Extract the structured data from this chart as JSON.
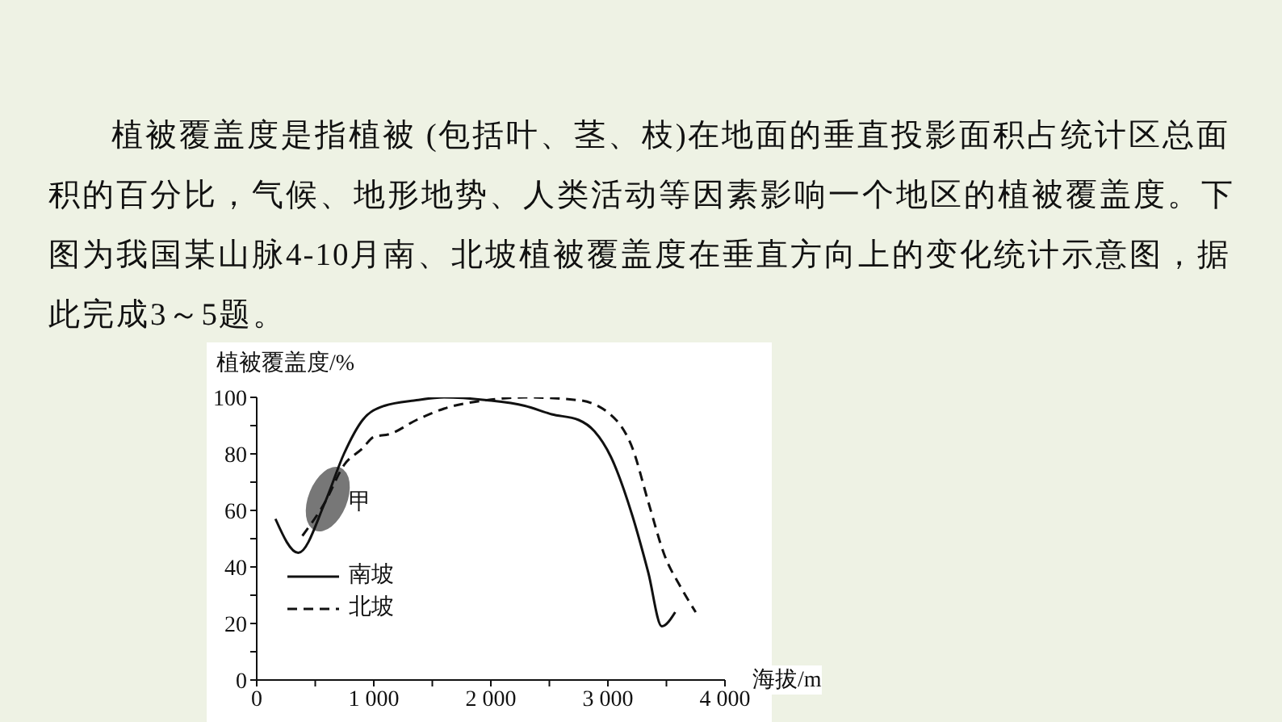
{
  "chart_data": {
    "type": "line",
    "title": "植被覆盖度是指植被 (包括叶、茎、枝)在地面的垂直投影面积占统计区总面积的百分比，气候、地形地势、人类活动等因素影响一个地区的植被覆盖度。下图为我国某山脉4-10月南、北坡植被覆盖度在垂直方向上的变化统计示意图，据此完成3～5题。",
    "xlabel": "海拔/m",
    "ylabel": "植被覆盖度/%",
    "xlim": [
      0,
      4000
    ],
    "ylim": [
      0,
      100
    ],
    "xticks": [
      0,
      {
        "value": 500,
        "label": null
      },
      {
        "value": 1000,
        "label": "1 000"
      },
      {
        "value": 1500,
        "label": null
      },
      {
        "value": 2000,
        "label": "2 000"
      },
      {
        "value": 2500,
        "label": null
      },
      {
        "value": 3000,
        "label": "3 000"
      },
      {
        "value": 3500,
        "label": null
      },
      {
        "value": 4000,
        "label": "4 000"
      }
    ],
    "yticks": [
      0,
      {
        "value": 10,
        "label": null
      },
      20,
      {
        "value": 30,
        "label": null
      },
      40,
      {
        "value": 50,
        "label": null
      },
      60,
      {
        "value": 70,
        "label": null
      },
      80,
      {
        "value": 90,
        "label": null
      },
      100
    ],
    "grid": false,
    "legend": "bottom left",
    "marker": "none",
    "annotations": [
      "甲"
    ],
    "series": [
      {
        "name": "南坡",
        "color": "#111111",
        "line_style": "solid",
        "x": [
          160,
          355,
          585,
          745,
          905,
          1090,
          1365,
          1600,
          1965,
          2290,
          2520,
          2750,
          2885,
          3025,
          3210,
          3345,
          3460,
          3575
        ],
        "values": [
          57,
          45,
          63,
          80,
          92,
          97,
          99,
          100,
          99,
          97,
          94,
          92,
          88,
          79,
          58,
          38,
          19,
          24
        ]
      },
      {
        "name": "北坡",
        "color": "#111111",
        "line_style": "dashed",
        "x": [
          390,
          585,
          745,
          905,
          1000,
          1135,
          1365,
          1600,
          1965,
          2290,
          2750,
          3070,
          3210,
          3345,
          3485,
          3620,
          3750
        ],
        "values": [
          51,
          63,
          76,
          82,
          86,
          87,
          92,
          96,
          99,
          100,
          99,
          92,
          82,
          63,
          44,
          33,
          24
        ]
      }
    ]
  }
}
